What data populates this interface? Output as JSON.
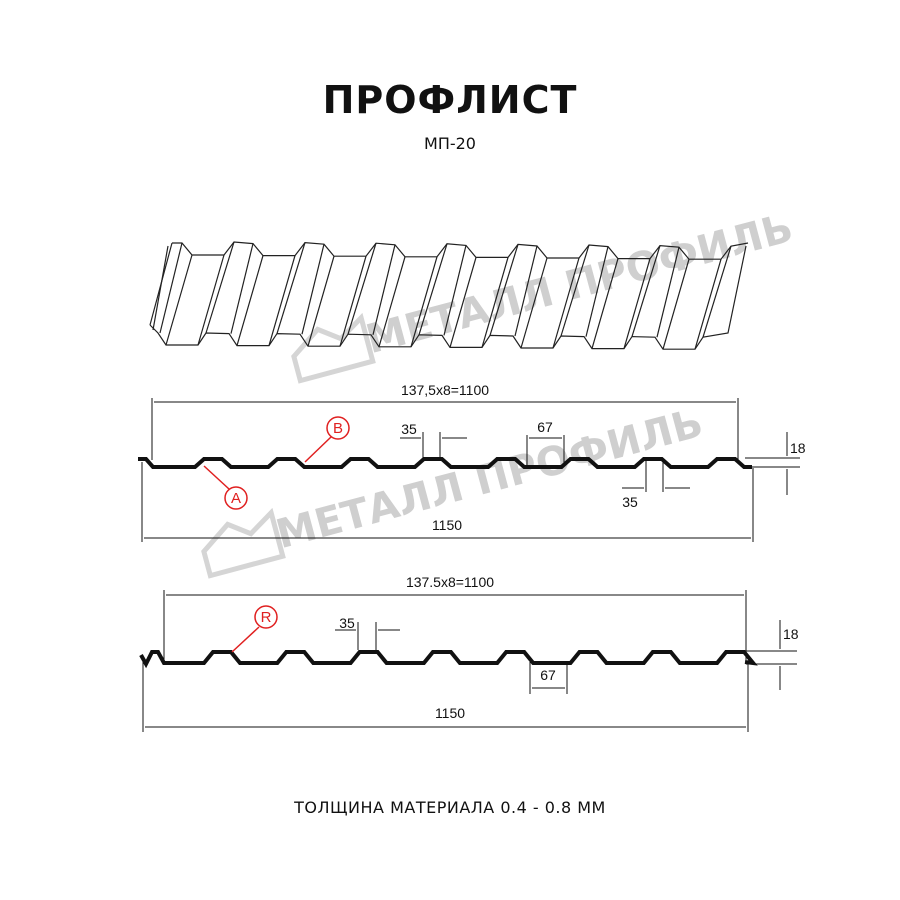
{
  "header": {
    "title": "ПРОФЛИСТ",
    "subtitle": "МП-20"
  },
  "watermark": {
    "text": "МЕТАЛЛ ПРОФИЛЬ",
    "color": "#cfcfcf"
  },
  "profile_top": {
    "pitch_label": "137,5x8=1100",
    "width_label": "1150",
    "rib_top_label": "35",
    "rib_top_label_2": "35",
    "valley_label": "67",
    "height_label": "18",
    "markers": [
      "B",
      "A"
    ]
  },
  "profile_bottom": {
    "pitch_label": "137.5x8=1100",
    "width_label": "1150",
    "rib_top_label": "35",
    "valley_label": "67",
    "height_label": "18",
    "markers": [
      "R"
    ]
  },
  "footer": {
    "thickness": "ТОЛЩИНА МАТЕРИАЛА 0.4 - 0.8 ММ"
  },
  "colors": {
    "line": "#111111",
    "marker": "#e02020"
  }
}
